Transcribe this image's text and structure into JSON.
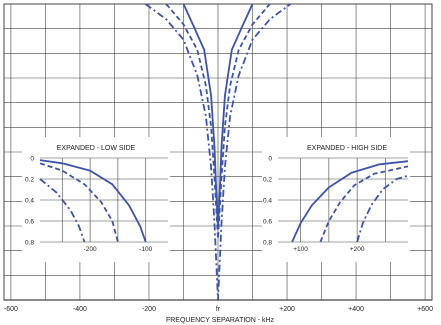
{
  "chart_data": [
    {
      "id": "main",
      "type": "line",
      "xlabel": "FREQUENCY SEPARATION - kHz",
      "x_ticks": [
        {
          "value": -600,
          "label": "-600"
        },
        {
          "value": -400,
          "label": "-400"
        },
        {
          "value": -200,
          "label": "-200"
        },
        {
          "value": 0,
          "label": "fr"
        },
        {
          "value": 200,
          "label": "+200"
        },
        {
          "value": 400,
          "label": "+400"
        },
        {
          "value": 600,
          "label": "+600"
        }
      ],
      "xlim": [
        -620,
        620
      ],
      "grid": true,
      "series": [
        {
          "style": "solid",
          "points": [
            [
              -100,
              0
            ],
            [
              -70,
              22
            ],
            [
              -40,
              45
            ],
            [
              -20,
              90
            ],
            [
              -10,
              140
            ],
            [
              -5,
              185
            ],
            [
              0,
              220
            ],
            [
              5,
              185
            ],
            [
              10,
              140
            ],
            [
              20,
              90
            ],
            [
              40,
              45
            ],
            [
              70,
              22
            ],
            [
              100,
              0
            ]
          ]
        },
        {
          "style": "dashed",
          "points": [
            [
              -150,
              0
            ],
            [
              -100,
              20
            ],
            [
              -60,
              45
            ],
            [
              -35,
              80
            ],
            [
              -20,
              120
            ],
            [
              -10,
              170
            ],
            [
              0,
              230
            ],
            [
              10,
              170
            ],
            [
              20,
              120
            ],
            [
              35,
              80
            ],
            [
              60,
              45
            ],
            [
              100,
              20
            ],
            [
              150,
              0
            ]
          ]
        },
        {
          "style": "dashdot",
          "points": [
            [
              -210,
              0
            ],
            [
              -150,
              15
            ],
            [
              -100,
              35
            ],
            [
              -60,
              70
            ],
            [
              -35,
              110
            ],
            [
              -20,
              160
            ],
            [
              -10,
              215
            ],
            [
              0,
              290
            ],
            [
              10,
              215
            ],
            [
              20,
              160
            ],
            [
              35,
              110
            ],
            [
              60,
              70
            ],
            [
              100,
              35
            ],
            [
              150,
              15
            ],
            [
              210,
              0
            ]
          ]
        }
      ]
    },
    {
      "id": "low",
      "type": "line",
      "title": "EXPANDED - LOW SIDE",
      "y_ticks": [
        "0",
        "0.2",
        "0.4",
        "0.6",
        "0.8"
      ],
      "x_ticks": [
        {
          "value": -200,
          "label": "-200"
        },
        {
          "value": -100,
          "label": "-100"
        }
      ],
      "xlim": [
        -290,
        -60
      ],
      "ylim": [
        0,
        0.8
      ],
      "series": [
        {
          "style": "solid",
          "points": [
            [
              -290,
              0.02
            ],
            [
              -250,
              0.05
            ],
            [
              -200,
              0.12
            ],
            [
              -160,
              0.25
            ],
            [
              -130,
              0.45
            ],
            [
              -110,
              0.65
            ],
            [
              -100,
              0.8
            ]
          ]
        },
        {
          "style": "dashed",
          "points": [
            [
              -290,
              0.05
            ],
            [
              -250,
              0.12
            ],
            [
              -210,
              0.25
            ],
            [
              -180,
              0.42
            ],
            [
              -160,
              0.6
            ],
            [
              -150,
              0.8
            ]
          ]
        },
        {
          "style": "dashdot",
          "points": [
            [
              -290,
              0.2
            ],
            [
              -260,
              0.33
            ],
            [
              -235,
              0.5
            ],
            [
              -220,
              0.65
            ],
            [
              -210,
              0.8
            ]
          ]
        }
      ]
    },
    {
      "id": "high",
      "type": "line",
      "title": "EXPANDED - HIGH SIDE",
      "y_ticks": [
        "0",
        "0.2",
        "0.4",
        "0.6",
        "0.8"
      ],
      "x_ticks": [
        {
          "value": 100,
          "label": "+100"
        },
        {
          "value": 200,
          "label": "+200"
        }
      ],
      "xlim": [
        60,
        290
      ],
      "ylim": [
        0,
        0.8
      ],
      "series": [
        {
          "style": "solid",
          "points": [
            [
              85,
              0.8
            ],
            [
              100,
              0.62
            ],
            [
              120,
              0.45
            ],
            [
              150,
              0.28
            ],
            [
              190,
              0.14
            ],
            [
              240,
              0.06
            ],
            [
              290,
              0.03
            ]
          ]
        },
        {
          "style": "dashed",
          "points": [
            [
              135,
              0.8
            ],
            [
              150,
              0.6
            ],
            [
              170,
              0.42
            ],
            [
              195,
              0.26
            ],
            [
              230,
              0.15
            ],
            [
              290,
              0.08
            ]
          ]
        },
        {
          "style": "dashdot",
          "points": [
            [
              200,
              0.8
            ],
            [
              210,
              0.62
            ],
            [
              225,
              0.45
            ],
            [
              245,
              0.3
            ],
            [
              270,
              0.2
            ],
            [
              290,
              0.17
            ]
          ]
        }
      ]
    }
  ],
  "colors": {
    "curve": "#3d54a6",
    "grid": "#444444",
    "panel": "#ffffff"
  }
}
